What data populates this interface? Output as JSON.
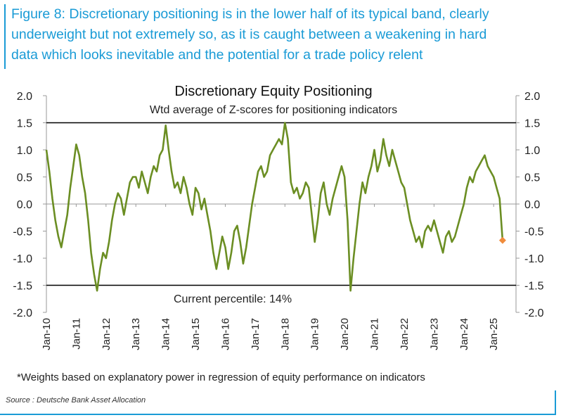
{
  "caption": {
    "lines": [
      "Figure 8: Discretionary positioning is in the lower half of its typical band, clearly",
      "underweight but not extremely so, as it is caught between a weakening in hard",
      "data which looks inevitable and the potential for a trade policy relent"
    ]
  },
  "footnote": "*Weights based on explanatory power in regression of equity performance on indicators",
  "source": "Source : Deutsche Bank Asset Allocation",
  "colors": {
    "caption": "#1a9bd6",
    "series": "#6b8e23",
    "marker": "#f08c3c",
    "axis": "#999999",
    "reference_lines": "#000000"
  },
  "chart_data": {
    "type": "line",
    "title": "Discretionary Equity Positioning",
    "subtitle": "Wtd average of Z-scores for positioning indicators",
    "annotation": "Current percentile: 14%",
    "ylim": [
      -2.0,
      2.0
    ],
    "y_ticks": [
      "2.0",
      "1.5",
      "1.0",
      "0.5",
      "0.0",
      "-0.5",
      "-1.0",
      "-1.5",
      "-2.0"
    ],
    "y_tick_values": [
      2.0,
      1.5,
      1.0,
      0.5,
      0.0,
      -0.5,
      -1.0,
      -1.5,
      -2.0
    ],
    "x_ticks": [
      "Jan-10",
      "Jan-11",
      "Jan-12",
      "Jan-13",
      "Jan-14",
      "Jan-15",
      "Jan-16",
      "Jan-17",
      "Jan-18",
      "Jan-19",
      "Jan-20",
      "Jan-21",
      "Jan-22",
      "Jan-23",
      "Jan-24",
      "Jan-25"
    ],
    "x_tick_values": [
      2010,
      2011,
      2012,
      2013,
      2014,
      2015,
      2016,
      2017,
      2018,
      2019,
      2020,
      2021,
      2022,
      2023,
      2024,
      2025
    ],
    "xlim": [
      2010,
      2025.75
    ],
    "reference_lines": [
      1.5,
      -1.5
    ],
    "series": [
      {
        "x": [
          2010.0,
          2010.1,
          2010.2,
          2010.3,
          2010.4,
          2010.5,
          2010.6,
          2010.7,
          2010.8,
          2010.9,
          2011.0,
          2011.1,
          2011.2,
          2011.3,
          2011.4,
          2011.5,
          2011.6,
          2011.7,
          2011.8,
          2011.9,
          2012.0,
          2012.1,
          2012.2,
          2012.3,
          2012.4,
          2012.5,
          2012.6,
          2012.7,
          2012.8,
          2012.9,
          2013.0,
          2013.1,
          2013.2,
          2013.3,
          2013.4,
          2013.5,
          2013.6,
          2013.7,
          2013.8,
          2013.9,
          2014.0,
          2014.1,
          2014.2,
          2014.3,
          2014.4,
          2014.5,
          2014.6,
          2014.7,
          2014.8,
          2014.9,
          2015.0,
          2015.1,
          2015.2,
          2015.3,
          2015.4,
          2015.5,
          2015.6,
          2015.7,
          2015.8,
          2015.9,
          2016.0,
          2016.1,
          2016.2,
          2016.3,
          2016.4,
          2016.5,
          2016.6,
          2016.7,
          2016.8,
          2016.9,
          2017.0,
          2017.1,
          2017.2,
          2017.3,
          2017.4,
          2017.5,
          2017.6,
          2017.7,
          2017.8,
          2017.9,
          2018.0,
          2018.1,
          2018.2,
          2018.3,
          2018.4,
          2018.5,
          2018.6,
          2018.7,
          2018.8,
          2018.9,
          2019.0,
          2019.1,
          2019.2,
          2019.3,
          2019.4,
          2019.5,
          2019.6,
          2019.7,
          2019.8,
          2019.9,
          2020.0,
          2020.1,
          2020.2,
          2020.3,
          2020.4,
          2020.5,
          2020.6,
          2020.7,
          2020.8,
          2020.9,
          2021.0,
          2021.1,
          2021.2,
          2021.3,
          2021.4,
          2021.5,
          2021.6,
          2021.7,
          2021.8,
          2021.9,
          2022.0,
          2022.1,
          2022.2,
          2022.3,
          2022.4,
          2022.5,
          2022.6,
          2022.7,
          2022.8,
          2022.9,
          2023.0,
          2023.1,
          2023.2,
          2023.3,
          2023.4,
          2023.5,
          2023.6,
          2023.7,
          2023.8,
          2023.9,
          2024.0,
          2024.1,
          2024.2,
          2024.3,
          2024.4,
          2024.5,
          2024.6,
          2024.7,
          2024.8,
          2024.9,
          2025.0,
          2025.1,
          2025.2,
          2025.3
        ],
        "values": [
          1.0,
          0.6,
          0.1,
          -0.3,
          -0.6,
          -0.8,
          -0.5,
          -0.2,
          0.3,
          0.7,
          1.1,
          0.9,
          0.5,
          0.2,
          -0.3,
          -0.9,
          -1.3,
          -1.6,
          -1.2,
          -0.9,
          -1.0,
          -0.7,
          -0.3,
          0.0,
          0.2,
          0.1,
          -0.2,
          0.1,
          0.4,
          0.5,
          0.5,
          0.3,
          0.6,
          0.4,
          0.2,
          0.5,
          0.7,
          0.6,
          0.9,
          1.0,
          1.45,
          1.0,
          0.6,
          0.3,
          0.4,
          0.2,
          0.5,
          0.3,
          0.0,
          -0.2,
          0.3,
          0.2,
          -0.1,
          0.1,
          -0.2,
          -0.5,
          -0.9,
          -1.2,
          -0.9,
          -0.6,
          -0.8,
          -1.2,
          -0.9,
          -0.5,
          -0.4,
          -0.7,
          -1.1,
          -0.8,
          -0.4,
          0.0,
          0.3,
          0.6,
          0.7,
          0.5,
          0.6,
          0.9,
          1.0,
          1.1,
          1.2,
          1.1,
          1.5,
          1.2,
          0.4,
          0.2,
          0.3,
          0.1,
          0.2,
          0.4,
          0.3,
          -0.2,
          -0.7,
          -0.3,
          0.2,
          0.4,
          0.0,
          -0.2,
          0.1,
          0.3,
          0.5,
          0.7,
          0.5,
          -0.3,
          -1.6,
          -1.0,
          -0.5,
          0.0,
          0.4,
          0.2,
          0.5,
          0.7,
          1.0,
          0.6,
          0.8,
          1.2,
          0.9,
          0.7,
          1.0,
          0.8,
          0.6,
          0.4,
          0.3,
          0.0,
          -0.3,
          -0.5,
          -0.7,
          -0.6,
          -0.8,
          -0.5,
          -0.4,
          -0.5,
          -0.3,
          -0.5,
          -0.7,
          -0.9,
          -0.6,
          -0.5,
          -0.7,
          -0.6,
          -0.4,
          -0.2,
          0.0,
          0.3,
          0.5,
          0.4,
          0.6,
          0.7,
          0.8,
          0.9,
          0.7,
          0.6,
          0.5,
          0.3,
          0.1,
          -0.67
        ]
      }
    ],
    "current_point": {
      "x": 2025.3,
      "y": -0.67
    }
  }
}
